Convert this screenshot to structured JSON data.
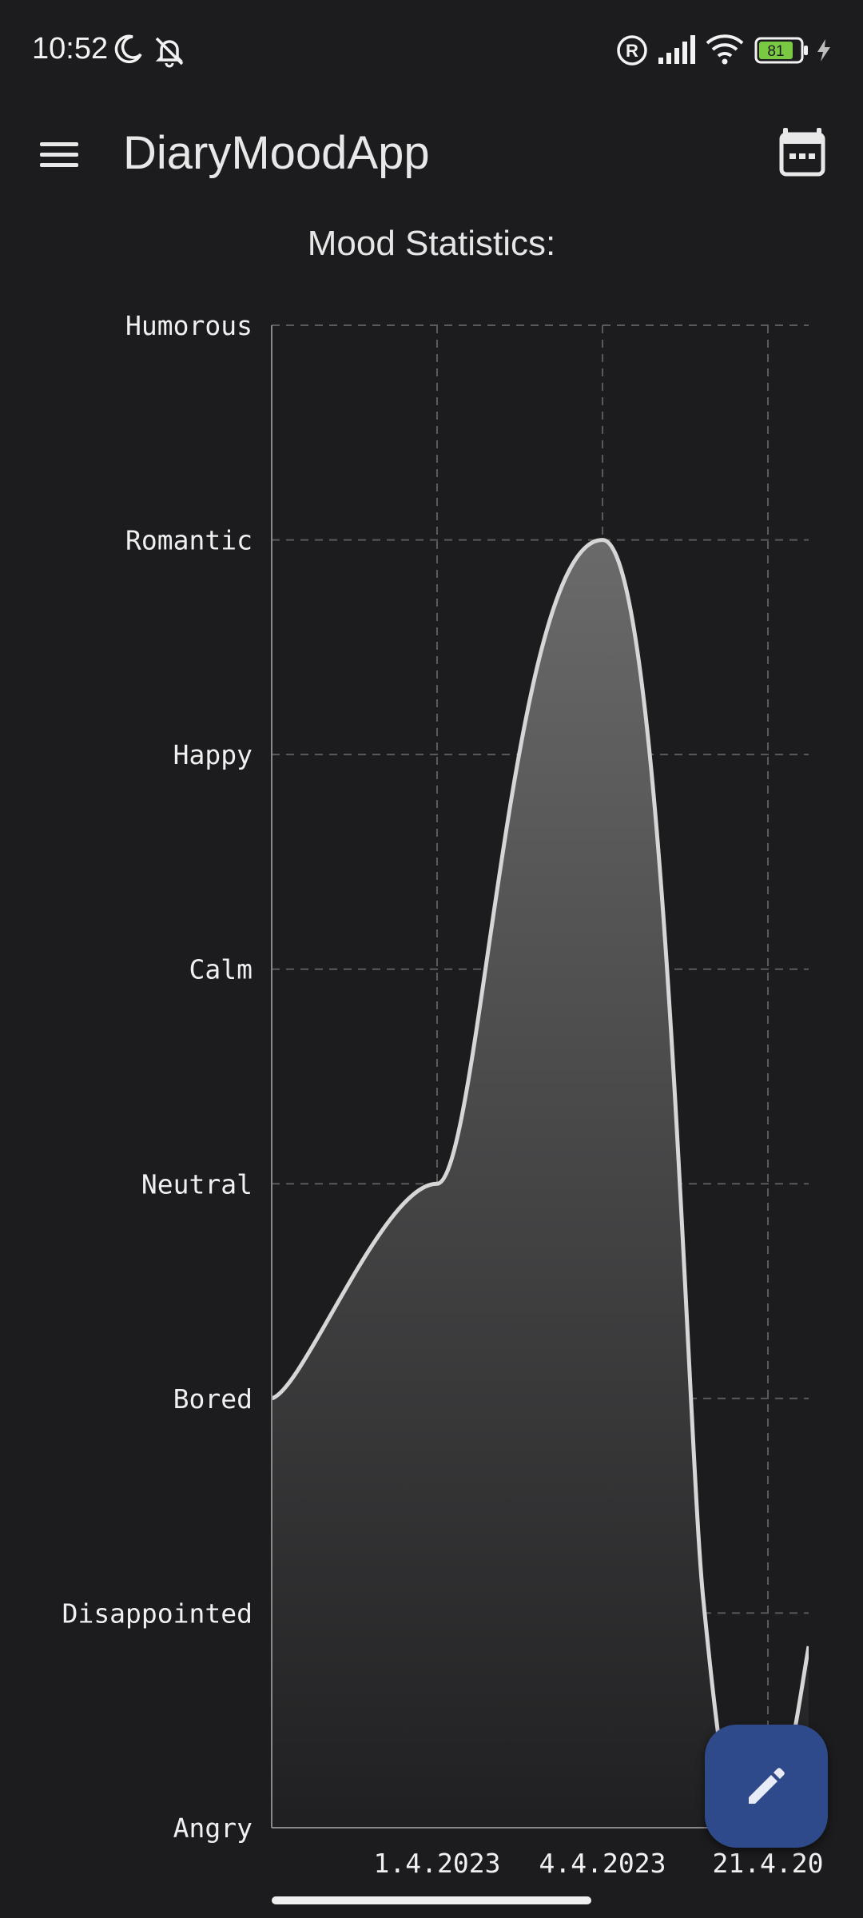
{
  "status_bar": {
    "time": "10:52",
    "battery": "81"
  },
  "app_bar": {
    "title": "DiaryMoodApp",
    "menu_icon": "hamburger-menu-icon",
    "calendar_icon": "calendar-icon"
  },
  "chart_data": {
    "type": "area",
    "title": "Mood Statistics:",
    "xlabel": "",
    "ylabel": "",
    "y_categories": [
      "Angry",
      "Disappointed",
      "Bored",
      "Neutral",
      "Calm",
      "Happy",
      "Romantic",
      "Humorous"
    ],
    "x_ticks": [
      "1.4.2023",
      "4.4.2023",
      "21.4.20"
    ],
    "points": [
      {
        "x": "start",
        "y": "Bored"
      },
      {
        "x": "1.4.2023",
        "y": "Neutral"
      },
      {
        "x": "4.4.2023",
        "y": "Romantic"
      },
      {
        "x": "21.4.2023",
        "y": "Angry"
      }
    ],
    "grid": true,
    "line_color": "#d6d6d6",
    "fill_color": "#6a6a6a"
  },
  "fab": {
    "icon": "pencil-edit-icon"
  },
  "colors": {
    "background": "#1c1c1e",
    "fab": "#2f4a8a"
  }
}
